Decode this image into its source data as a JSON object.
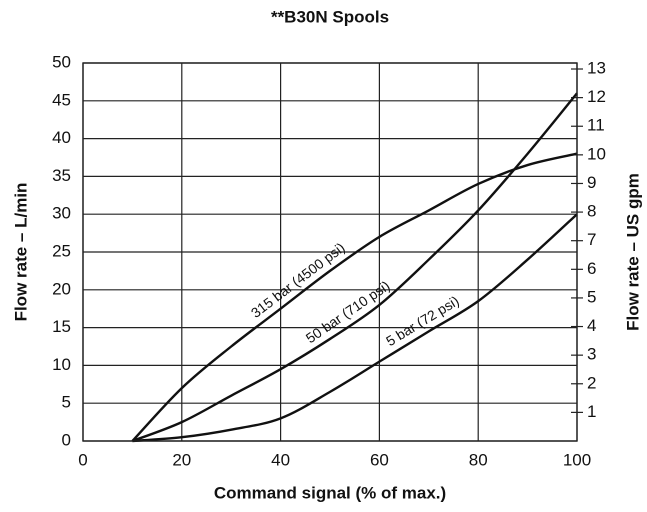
{
  "chart_data": {
    "type": "line",
    "title": "**B30N Spools",
    "x_label": "Command signal (% of max.)",
    "y_label": "Flow rate – L/min",
    "y2_label": "Flow rate – US gpm",
    "x": [
      10,
      20,
      30,
      40,
      50,
      60,
      70,
      80,
      90,
      100
    ],
    "series": [
      {
        "name": "315 bar (4500 psi)",
        "color": "#111111",
        "values": [
          0,
          7,
          12.5,
          17.5,
          22.5,
          27,
          30.5,
          34,
          36.5,
          38
        ]
      },
      {
        "name": "50 bar (710 psi)",
        "color": "#111111",
        "values": [
          0,
          2.5,
          6,
          9.5,
          13.5,
          18,
          24,
          30.5,
          38,
          46
        ]
      },
      {
        "name": "5 bar (72 psi)",
        "color": "#111111",
        "values": [
          0,
          0.5,
          1.5,
          3,
          6.5,
          10.5,
          14.5,
          18.5,
          24,
          30
        ]
      }
    ],
    "xlim": [
      0,
      100
    ],
    "xticks": [
      0,
      20,
      40,
      60,
      80,
      100
    ],
    "ylim": [
      0,
      50
    ],
    "yticks": [
      0,
      5,
      10,
      15,
      20,
      25,
      30,
      35,
      40,
      45,
      50
    ],
    "y2lim": [
      0,
      13.21
    ],
    "y2ticks": [
      1,
      2,
      3,
      4,
      5,
      6,
      7,
      8,
      9,
      10,
      11,
      12,
      13
    ],
    "grid": true
  }
}
